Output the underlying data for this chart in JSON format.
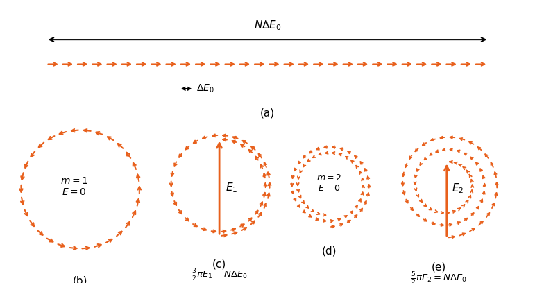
{
  "orange_color": "#E8601C",
  "black_color": "#000000",
  "bg_color": "#ffffff",
  "n_phasors_line": 30,
  "fig_width": 7.71,
  "fig_height": 4.08,
  "dpi": 100,
  "label_a": "(a)",
  "label_b": "(b)",
  "label_c": "(c)",
  "label_d": "(d)",
  "label_e": "(e)",
  "text_b": "$m = 1$\n$E = 0$",
  "text_d": "$m = 2$\n$E = 0$",
  "eq_c": "$\\frac{3}{2}\\pi E_1 = N\\Delta E_0$",
  "eq_e": "$\\frac{5}{2}\\pi E_2 = N\\Delta E_0$",
  "top_label": "$N\\Delta E_0$",
  "bot_label": "$\\Delta E_0$"
}
